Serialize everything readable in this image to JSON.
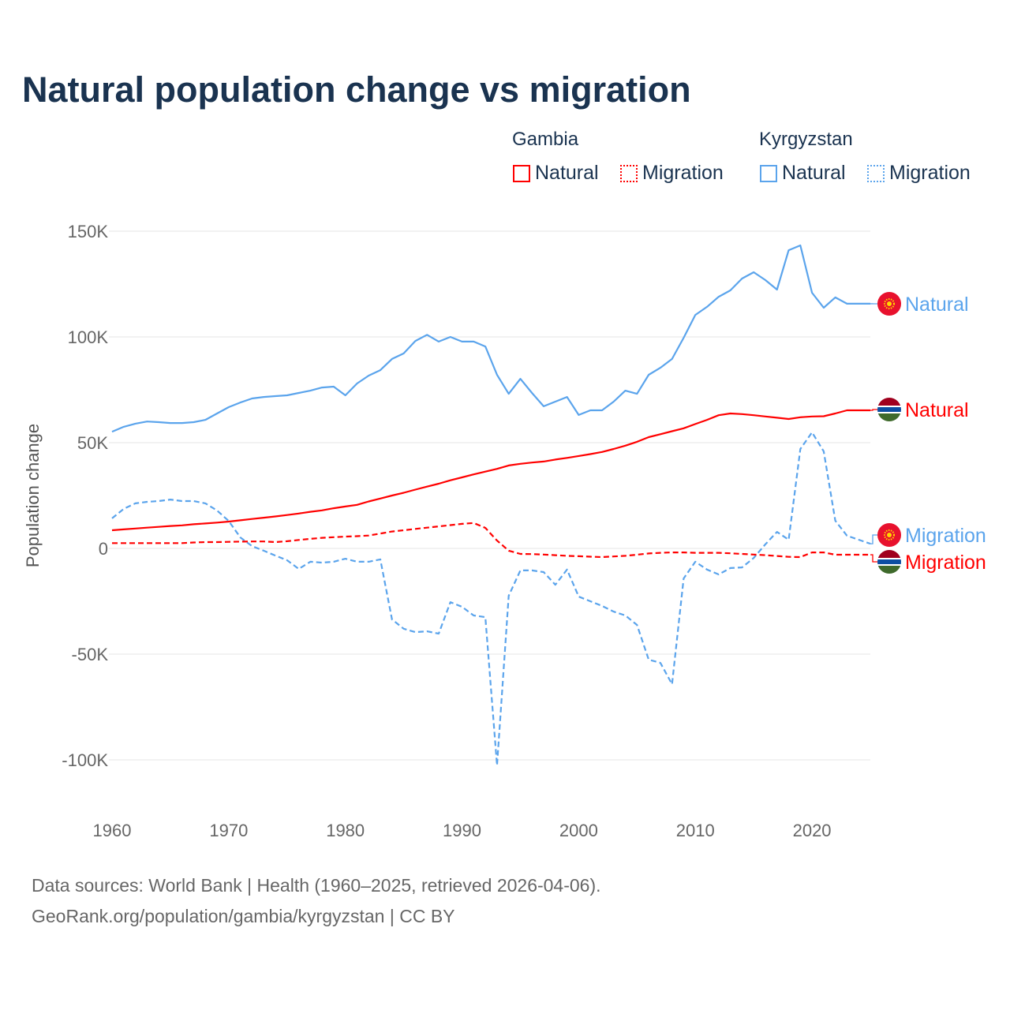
{
  "title": "Natural population change vs migration",
  "legend": {
    "groups": [
      {
        "name": "Gambia",
        "items": [
          "Natural",
          "Migration"
        ],
        "color": "#ff0000"
      },
      {
        "name": "Kyrgyzstan",
        "items": [
          "Natural",
          "Migration"
        ],
        "color": "#5ba4ec"
      }
    ]
  },
  "footer": {
    "line1": "Data sources: World Bank | Health (1960–2025, retrieved 2026-04-06).",
    "line2": "GeoRank.org/population/gambia/kyrgyzstan | CC BY"
  },
  "chart_data": {
    "type": "line",
    "title": "Natural population change vs migration",
    "xlabel": "",
    "ylabel": "Population change",
    "xlim": [
      1960,
      2025
    ],
    "ylim": [
      -100000,
      150000
    ],
    "xticks": [
      1960,
      1970,
      1980,
      1990,
      2000,
      2010,
      2020
    ],
    "xtick_labels": [
      "1960",
      "1970",
      "1980",
      "1990",
      "2000",
      "2010",
      "2020"
    ],
    "yticks": [
      150000,
      100000,
      50000,
      0,
      -50000,
      -100000
    ],
    "ytick_labels": [
      "150K",
      "100K",
      "50K",
      "0",
      "-50K",
      "-100K"
    ],
    "grid": true,
    "legend_position": "top-right",
    "x_start": 1960,
    "series": [
      {
        "name": "Kyrgyzstan Natural",
        "label": "Natural",
        "country": "Kyrgyzstan",
        "color": "#5ba4ec",
        "dash": false,
        "values": [
          55.2,
          57.5,
          59,
          60,
          59.7,
          59.3,
          59.3,
          59.7,
          60.8,
          63.8,
          66.8,
          69,
          70.9,
          71.6,
          72,
          72.4,
          73.5,
          74.6,
          76.1,
          76.5,
          72.4,
          78,
          81.7,
          84.3,
          89.6,
          92.2,
          98.1,
          101,
          97.8,
          100,
          97.8,
          97.8,
          95.5,
          82.1,
          73.1,
          80.2,
          73.5,
          67.2,
          69.4,
          71.6,
          63.1,
          65.3,
          65.3,
          69.4,
          74.6,
          73.1,
          82.1,
          85.4,
          89.6,
          99.6,
          110.4,
          114.2,
          119,
          122,
          127.6,
          130.6,
          126.9,
          122.4,
          141,
          143.3,
          120.9,
          113.8,
          118.7,
          115.7,
          115.7,
          115.7
        ]
      },
      {
        "name": "Gambia Natural",
        "label": "Natural",
        "country": "Gambia",
        "color": "#ff0000",
        "dash": false,
        "values": [
          8.6,
          9.0,
          9.4,
          9.8,
          10.2,
          10.6,
          10.9,
          11.4,
          11.8,
          12.2,
          12.7,
          13.3,
          13.9,
          14.5,
          15.1,
          15.8,
          16.5,
          17.3,
          18.0,
          19.0,
          19.8,
          20.6,
          22.2,
          23.6,
          25.0,
          26.3,
          27.8,
          29.2,
          30.6,
          32.2,
          33.6,
          35.0,
          36.3,
          37.6,
          39.2,
          40.0,
          40.6,
          41.1,
          42.0,
          42.8,
          43.7,
          44.6,
          45.6,
          47.0,
          48.6,
          50.4,
          52.6,
          54.0,
          55.4,
          56.8,
          58.8,
          60.8,
          63.0,
          63.8,
          63.5,
          63.0,
          62.4,
          61.8,
          61.2,
          62.0,
          62.4,
          62.5,
          63.8,
          65.3,
          65.3,
          65.3
        ]
      },
      {
        "name": "Kyrgyzstan Migration",
        "label": "Migration",
        "country": "Kyrgyzstan",
        "color": "#5ba4ec",
        "dash": true,
        "values": [
          14.2,
          18.7,
          21.3,
          22,
          22.4,
          23.1,
          22.4,
          22.4,
          21.3,
          17.9,
          13,
          5.2,
          1.1,
          -1.1,
          -3.4,
          -5.6,
          -9.7,
          -6.3,
          -6.7,
          -6.3,
          -4.9,
          -6.3,
          -6.3,
          -5.2,
          -33.6,
          -38,
          -39.6,
          -39.2,
          -40.3,
          -25.4,
          -27.6,
          -31.7,
          -32.5,
          -102.6,
          -22.4,
          -10.4,
          -10.4,
          -11.2,
          -17.2,
          -10,
          -22.8,
          -25,
          -27.2,
          -29.9,
          -31.7,
          -36.2,
          -52.6,
          -54.1,
          -64.2,
          -14.2,
          -6.3,
          -10,
          -12.3,
          -9.3,
          -9,
          -4.5,
          1.9,
          7.8,
          4.1,
          47,
          54.9,
          45.9,
          13.1,
          6,
          4.1,
          2.2
        ]
      },
      {
        "name": "Gambia Migration",
        "label": "Migration",
        "country": "Gambia",
        "color": "#ff0000",
        "dash": true,
        "values": [
          2.5,
          2.5,
          2.5,
          2.5,
          2.5,
          2.5,
          2.5,
          2.8,
          3,
          3,
          3.1,
          3.2,
          3.3,
          3.3,
          3.0,
          3.4,
          4,
          4.5,
          5,
          5.3,
          5.6,
          5.8,
          6.1,
          7,
          8,
          8.6,
          9.2,
          9.8,
          10.4,
          11,
          11.6,
          12,
          9.7,
          3.7,
          -1.1,
          -2.6,
          -2.7,
          -2.9,
          -3.2,
          -3.5,
          -3.7,
          -3.9,
          -4.1,
          -3.8,
          -3.5,
          -3.0,
          -2.4,
          -2.1,
          -1.9,
          -1.9,
          -2.1,
          -2.1,
          -2.1,
          -2.3,
          -2.6,
          -2.9,
          -3.2,
          -3.6,
          -4.0,
          -4.1,
          -1.9,
          -1.9,
          -3.0,
          -3.0,
          -3.0,
          -3.0
        ]
      }
    ],
    "value_unit": "thousands"
  }
}
